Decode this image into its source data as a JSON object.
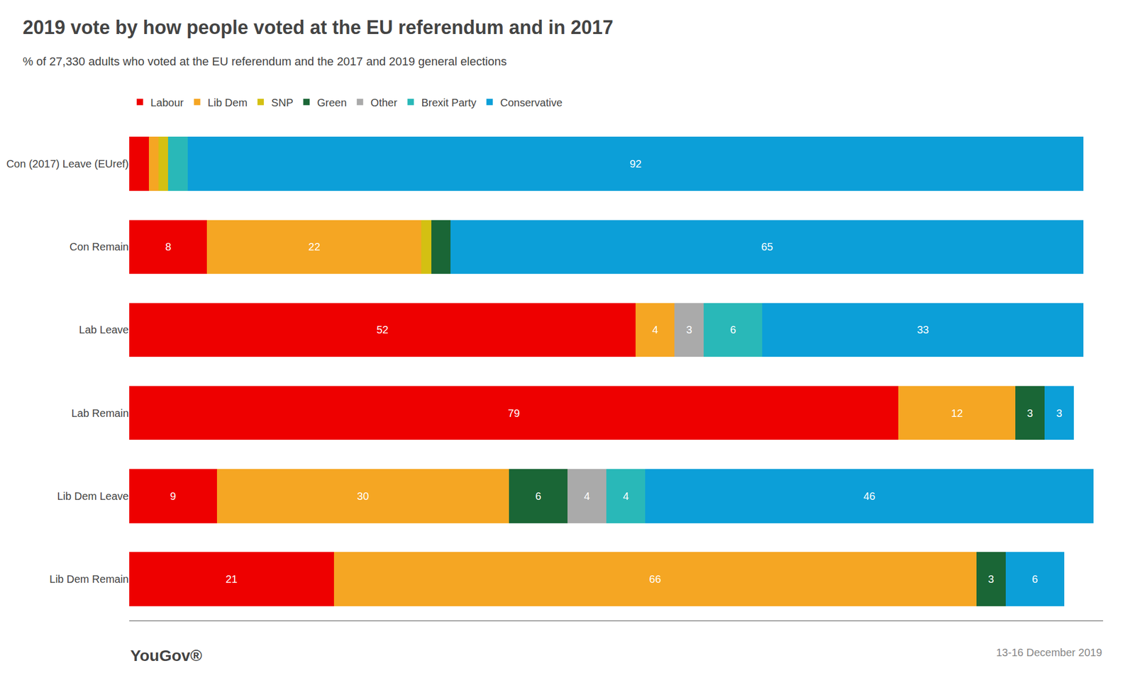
{
  "chart_data": {
    "type": "bar",
    "orientation": "horizontal",
    "stacked": true,
    "title": "2019 vote by how people voted at the EU referendum and in 2017",
    "subtitle": "% of 27,330 adults who voted at the EU referendum and the 2017 and 2019 general elections",
    "categories": [
      "Con (2017) Leave (EUref)",
      "Con Remain",
      "Lab Leave",
      "Lab Remain",
      "Lib Dem Leave",
      "Lib Dem Remain"
    ],
    "series": [
      {
        "name": "Labour",
        "color": "#ee0000",
        "values": [
          2,
          8,
          52,
          79,
          9,
          21
        ],
        "value_labels": [
          null,
          "8",
          "52",
          "79",
          "9",
          "21"
        ]
      },
      {
        "name": "Lib Dem",
        "color": "#f5a623",
        "values": [
          1,
          22,
          4,
          12,
          30,
          66
        ],
        "value_labels": [
          null,
          "22",
          "4",
          "12",
          "30",
          "66"
        ]
      },
      {
        "name": "SNP",
        "color": "#d4c012",
        "values": [
          1,
          1,
          0,
          0,
          0,
          0
        ],
        "value_labels": [
          null,
          null,
          null,
          null,
          null,
          null
        ]
      },
      {
        "name": "Green",
        "color": "#1a6636",
        "values": [
          0,
          2,
          0,
          3,
          6,
          3
        ],
        "value_labels": [
          null,
          null,
          null,
          "3",
          "6",
          "3"
        ]
      },
      {
        "name": "Other",
        "color": "#aaaaaa",
        "values": [
          0,
          0,
          3,
          0,
          4,
          0
        ],
        "value_labels": [
          null,
          null,
          "3",
          null,
          "4",
          null
        ]
      },
      {
        "name": "Brexit Party",
        "color": "#29b8b8",
        "values": [
          2,
          0,
          6,
          0,
          4,
          0
        ],
        "value_labels": [
          null,
          null,
          "6",
          null,
          "4",
          null
        ]
      },
      {
        "name": "Conservative",
        "color": "#0c9fd8",
        "values": [
          92,
          65,
          33,
          3,
          46,
          6
        ],
        "value_labels": [
          "92",
          "65",
          "33",
          "3",
          "46",
          "6"
        ]
      }
    ],
    "xlim": [
      0,
      100
    ],
    "data_labels": true,
    "tick_labels": "y",
    "grid": false,
    "legend": "top",
    "annotations": [
      "YouGov®",
      "13-16 December 2019"
    ]
  }
}
